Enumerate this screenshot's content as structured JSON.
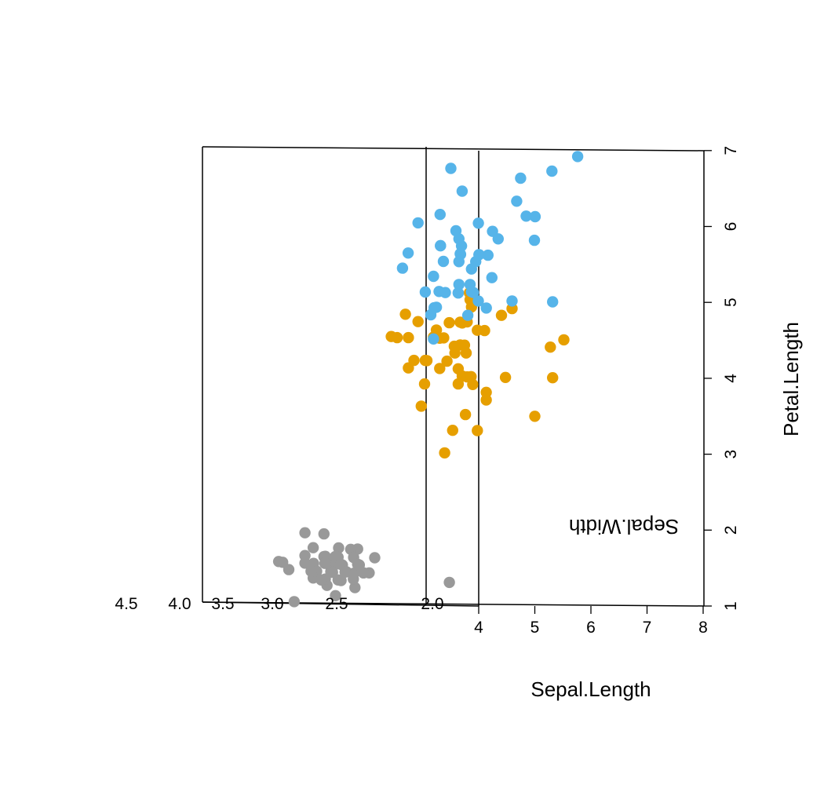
{
  "chart_data": {
    "type": "scatter",
    "projection": "3d",
    "x_axis": {
      "label": "Sepal.Length",
      "ticks": [
        "4",
        "5",
        "6",
        "7",
        "8"
      ],
      "lim": [
        3,
        8
      ]
    },
    "y_axis": {
      "label": "Sepal.Width",
      "ticks": [
        "2.0",
        "2.5",
        "3.0",
        "3.5",
        "4.0",
        "4.5"
      ],
      "lim": [
        2,
        4.5
      ]
    },
    "z_axis": {
      "label": "Petal.Length",
      "ticks": [
        "1",
        "2",
        "3",
        "4",
        "5",
        "6",
        "7"
      ],
      "lim": [
        1,
        7
      ]
    },
    "grid": false,
    "legend": "none",
    "series": [
      {
        "color": "#999999",
        "points": [
          [
            5.1,
            3.5,
            1.4
          ],
          [
            4.9,
            3.0,
            1.4
          ],
          [
            4.7,
            3.2,
            1.3
          ],
          [
            4.6,
            3.1,
            1.5
          ],
          [
            5.0,
            3.6,
            1.4
          ],
          [
            5.4,
            3.9,
            1.7
          ],
          [
            4.6,
            3.4,
            1.4
          ],
          [
            5.0,
            3.4,
            1.5
          ],
          [
            4.4,
            2.9,
            1.4
          ],
          [
            4.9,
            3.1,
            1.5
          ],
          [
            5.4,
            3.7,
            1.5
          ],
          [
            4.8,
            3.4,
            1.6
          ],
          [
            4.8,
            3.0,
            1.4
          ],
          [
            4.3,
            3.0,
            1.1
          ],
          [
            5.8,
            4.0,
            1.2
          ],
          [
            5.7,
            4.4,
            1.5
          ],
          [
            5.4,
            3.9,
            1.3
          ],
          [
            5.1,
            3.5,
            1.4
          ],
          [
            5.7,
            3.8,
            1.7
          ],
          [
            5.1,
            3.8,
            1.5
          ],
          [
            5.4,
            3.4,
            1.7
          ],
          [
            5.1,
            3.7,
            1.5
          ],
          [
            4.6,
            3.6,
            1.0
          ],
          [
            5.1,
            3.3,
            1.7
          ],
          [
            4.8,
            3.4,
            1.9
          ],
          [
            5.0,
            3.0,
            1.6
          ],
          [
            5.0,
            3.4,
            1.6
          ],
          [
            5.2,
            3.5,
            1.5
          ],
          [
            5.2,
            3.4,
            1.4
          ],
          [
            4.7,
            3.2,
            1.6
          ],
          [
            4.8,
            3.1,
            1.6
          ],
          [
            5.4,
            3.4,
            1.5
          ],
          [
            5.2,
            4.1,
            1.5
          ],
          [
            5.5,
            4.2,
            1.4
          ],
          [
            4.9,
            3.1,
            1.5
          ],
          [
            5.0,
            3.2,
            1.2
          ],
          [
            5.5,
            3.5,
            1.3
          ],
          [
            4.9,
            3.6,
            1.4
          ],
          [
            4.4,
            3.0,
            1.3
          ],
          [
            5.1,
            3.4,
            1.5
          ],
          [
            5.0,
            3.5,
            1.3
          ],
          [
            4.5,
            2.3,
            1.3
          ],
          [
            4.4,
            3.2,
            1.3
          ],
          [
            5.0,
            3.5,
            1.6
          ],
          [
            5.1,
            3.8,
            1.9
          ],
          [
            4.8,
            3.0,
            1.4
          ],
          [
            5.1,
            3.8,
            1.6
          ],
          [
            4.6,
            3.2,
            1.4
          ],
          [
            5.3,
            3.7,
            1.5
          ],
          [
            5.0,
            3.3,
            1.4
          ]
        ]
      },
      {
        "color": "#E69F00",
        "points": [
          [
            7.0,
            3.2,
            4.7
          ],
          [
            6.4,
            3.2,
            4.5
          ],
          [
            6.9,
            3.1,
            4.9
          ],
          [
            5.5,
            2.3,
            4.0
          ],
          [
            6.5,
            2.8,
            4.6
          ],
          [
            5.7,
            2.8,
            4.5
          ],
          [
            6.3,
            3.3,
            4.7
          ],
          [
            4.9,
            2.4,
            3.3
          ],
          [
            6.6,
            2.9,
            4.6
          ],
          [
            5.2,
            2.7,
            3.9
          ],
          [
            5.0,
            2.0,
            3.5
          ],
          [
            5.9,
            3.0,
            4.2
          ],
          [
            6.0,
            2.2,
            4.0
          ],
          [
            6.1,
            2.9,
            4.7
          ],
          [
            5.6,
            2.9,
            3.6
          ],
          [
            6.7,
            3.1,
            4.4
          ],
          [
            5.6,
            3.0,
            4.5
          ],
          [
            5.8,
            2.7,
            4.1
          ],
          [
            6.2,
            2.2,
            4.5
          ],
          [
            5.6,
            2.5,
            3.9
          ],
          [
            5.9,
            3.2,
            4.8
          ],
          [
            6.1,
            2.8,
            4.0
          ],
          [
            6.3,
            2.5,
            4.9
          ],
          [
            6.1,
            2.8,
            4.7
          ],
          [
            6.4,
            2.9,
            4.3
          ],
          [
            6.6,
            3.0,
            4.4
          ],
          [
            6.8,
            2.8,
            4.8
          ],
          [
            6.7,
            3.0,
            5.0
          ],
          [
            6.0,
            2.9,
            4.5
          ],
          [
            5.7,
            2.6,
            3.5
          ],
          [
            5.5,
            2.4,
            3.8
          ],
          [
            5.5,
            2.4,
            3.7
          ],
          [
            5.8,
            2.7,
            3.9
          ],
          [
            6.0,
            2.7,
            5.1
          ],
          [
            5.4,
            3.0,
            4.5
          ],
          [
            6.0,
            3.4,
            4.5
          ],
          [
            6.7,
            3.1,
            4.7
          ],
          [
            6.3,
            2.3,
            4.4
          ],
          [
            5.6,
            3.0,
            4.1
          ],
          [
            5.5,
            2.5,
            4.0
          ],
          [
            5.5,
            2.6,
            4.4
          ],
          [
            6.1,
            3.0,
            4.6
          ],
          [
            5.8,
            2.6,
            4.0
          ],
          [
            5.0,
            2.3,
            3.3
          ],
          [
            5.6,
            2.7,
            4.2
          ],
          [
            5.7,
            3.0,
            4.2
          ],
          [
            5.7,
            2.9,
            4.2
          ],
          [
            6.2,
            2.9,
            4.3
          ],
          [
            5.1,
            2.5,
            3.0
          ],
          [
            5.7,
            2.8,
            4.1
          ]
        ]
      },
      {
        "color": "#56B4E9",
        "points": [
          [
            6.3,
            3.3,
            6.0
          ],
          [
            5.8,
            2.7,
            5.1
          ],
          [
            7.1,
            3.0,
            5.9
          ],
          [
            6.3,
            2.9,
            5.6
          ],
          [
            6.5,
            3.0,
            5.8
          ],
          [
            7.6,
            3.0,
            6.6
          ],
          [
            4.9,
            2.5,
            4.5
          ],
          [
            7.3,
            2.9,
            6.3
          ],
          [
            6.7,
            2.5,
            5.8
          ],
          [
            7.2,
            3.6,
            6.1
          ],
          [
            6.5,
            3.2,
            5.1
          ],
          [
            6.4,
            2.7,
            5.3
          ],
          [
            6.8,
            3.0,
            5.5
          ],
          [
            5.7,
            2.5,
            5.0
          ],
          [
            5.8,
            2.8,
            5.1
          ],
          [
            6.4,
            3.2,
            5.3
          ],
          [
            6.5,
            3.0,
            5.5
          ],
          [
            7.7,
            3.8,
            6.7
          ],
          [
            7.7,
            2.6,
            6.9
          ],
          [
            6.0,
            2.2,
            5.0
          ],
          [
            6.9,
            3.2,
            5.7
          ],
          [
            5.6,
            2.8,
            4.9
          ],
          [
            7.7,
            2.8,
            6.7
          ],
          [
            6.3,
            2.7,
            4.9
          ],
          [
            6.7,
            3.3,
            5.7
          ],
          [
            7.2,
            3.2,
            6.0
          ],
          [
            6.2,
            2.8,
            4.8
          ],
          [
            6.1,
            3.0,
            4.9
          ],
          [
            6.4,
            2.8,
            5.6
          ],
          [
            7.2,
            3.0,
            5.8
          ],
          [
            7.4,
            2.8,
            6.1
          ],
          [
            7.9,
            3.8,
            6.4
          ],
          [
            6.4,
            2.8,
            5.6
          ],
          [
            6.3,
            2.8,
            5.1
          ],
          [
            6.1,
            2.6,
            5.6
          ],
          [
            7.7,
            3.0,
            6.1
          ],
          [
            6.3,
            3.4,
            5.6
          ],
          [
            6.4,
            3.1,
            5.5
          ],
          [
            6.0,
            3.0,
            4.8
          ],
          [
            6.9,
            3.1,
            5.4
          ],
          [
            6.7,
            3.1,
            5.6
          ],
          [
            6.9,
            3.1,
            5.1
          ],
          [
            5.8,
            2.7,
            5.1
          ],
          [
            6.8,
            3.2,
            5.9
          ],
          [
            6.7,
            3.3,
            5.7
          ],
          [
            6.7,
            3.0,
            5.2
          ],
          [
            6.3,
            2.5,
            5.0
          ],
          [
            6.5,
            3.0,
            5.2
          ],
          [
            6.2,
            3.4,
            5.4
          ],
          [
            5.9,
            3.0,
            5.1
          ]
        ]
      }
    ]
  }
}
